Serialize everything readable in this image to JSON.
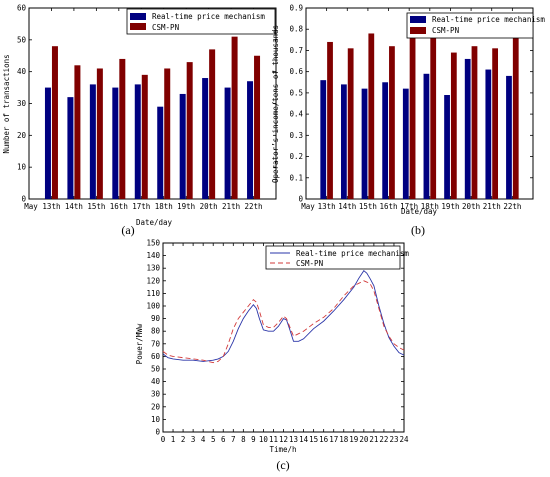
{
  "chart_data": [
    {
      "type": "bar",
      "panel_label": "(a)",
      "xlabel": "Date/day",
      "ylabel": "Number of transactions",
      "categories": [
        "13th",
        "14th",
        "15th",
        "16th",
        "17th",
        "18th",
        "19th",
        "20th",
        "21th",
        "22th"
      ],
      "first_tick_prefix": "May",
      "ylim": [
        0,
        60
      ],
      "yticks": [
        0,
        10,
        20,
        30,
        40,
        50,
        60
      ],
      "legend_position": "top-right",
      "series": [
        {
          "name": "Real-time price mechanism",
          "color": "#000080",
          "values": [
            35,
            32,
            36,
            35,
            36,
            29,
            33,
            38,
            35,
            37
          ]
        },
        {
          "name": "CSM-PN",
          "color": "#800000",
          "values": [
            48,
            42,
            41,
            44,
            39,
            41,
            43,
            47,
            51,
            45
          ]
        }
      ]
    },
    {
      "type": "bar",
      "panel_label": "(b)",
      "xlabel": "Date/day",
      "ylabel": "Operator’s income/tens of thousands",
      "categories": [
        "13th",
        "14th",
        "15th",
        "16th",
        "17th",
        "18th",
        "19th",
        "20th",
        "21th",
        "22th"
      ],
      "first_tick_prefix": "May",
      "ylim": [
        0,
        0.9
      ],
      "yticks": [
        0,
        0.1,
        0.2,
        0.3,
        0.4,
        0.5,
        0.6,
        0.7,
        0.8,
        0.9
      ],
      "legend_position": "top-right",
      "series": [
        {
          "name": "Real-time price mechanism",
          "color": "#000080",
          "values": [
            0.56,
            0.54,
            0.52,
            0.55,
            0.52,
            0.59,
            0.49,
            0.66,
            0.61,
            0.58
          ]
        },
        {
          "name": "CSM-PN",
          "color": "#800000",
          "values": [
            0.74,
            0.71,
            0.78,
            0.72,
            0.78,
            0.76,
            0.69,
            0.72,
            0.71,
            0.78
          ]
        }
      ]
    },
    {
      "type": "line",
      "panel_label": "(c)",
      "xlabel": "Time/h",
      "ylabel": "Power/MWw",
      "xlim": [
        0,
        24
      ],
      "ylim": [
        0,
        150
      ],
      "xticks": [
        0,
        1,
        2,
        3,
        4,
        5,
        6,
        7,
        8,
        9,
        10,
        11,
        12,
        13,
        14,
        15,
        16,
        17,
        18,
        19,
        20,
        21,
        22,
        23,
        24
      ],
      "yticks": [
        0,
        10,
        20,
        30,
        40,
        50,
        60,
        70,
        80,
        90,
        100,
        110,
        120,
        130,
        140,
        150
      ],
      "legend_position": "top-right",
      "x": [
        0,
        0.5,
        1,
        2,
        3,
        4,
        5,
        5.5,
        6,
        6.5,
        7,
        7.5,
        8,
        8.5,
        9,
        9.3,
        9.6,
        10,
        10.5,
        11,
        11.5,
        12,
        12.3,
        12.6,
        13,
        13.5,
        14,
        15,
        16,
        17,
        18,
        19,
        19.5,
        20,
        20.3,
        20.6,
        21,
        21.5,
        22,
        22.5,
        23,
        23.5,
        24
      ],
      "series": [
        {
          "name": "Real-time price mechanism",
          "color": "#2a35a8",
          "dash": "none",
          "values": [
            62,
            59,
            58,
            57,
            57,
            56,
            57,
            58,
            60,
            64,
            72,
            82,
            90,
            96,
            101,
            98,
            90,
            81,
            80,
            80,
            84,
            90,
            89,
            82,
            72,
            72,
            74,
            82,
            88,
            96,
            105,
            115,
            122,
            128,
            126,
            122,
            116,
            100,
            86,
            75,
            68,
            63,
            61
          ]
        },
        {
          "name": "CSM-PN",
          "color": "#d23a3a",
          "dash": "5,3",
          "values": [
            64,
            61,
            60,
            59,
            58,
            57,
            55,
            56,
            60,
            70,
            82,
            90,
            95,
            100,
            105,
            103,
            96,
            85,
            83,
            83,
            87,
            92,
            90,
            84,
            76,
            78,
            80,
            86,
            91,
            98,
            108,
            116,
            118,
            120,
            119,
            118,
            112,
            98,
            84,
            76,
            70,
            67,
            65
          ]
        }
      ]
    }
  ]
}
